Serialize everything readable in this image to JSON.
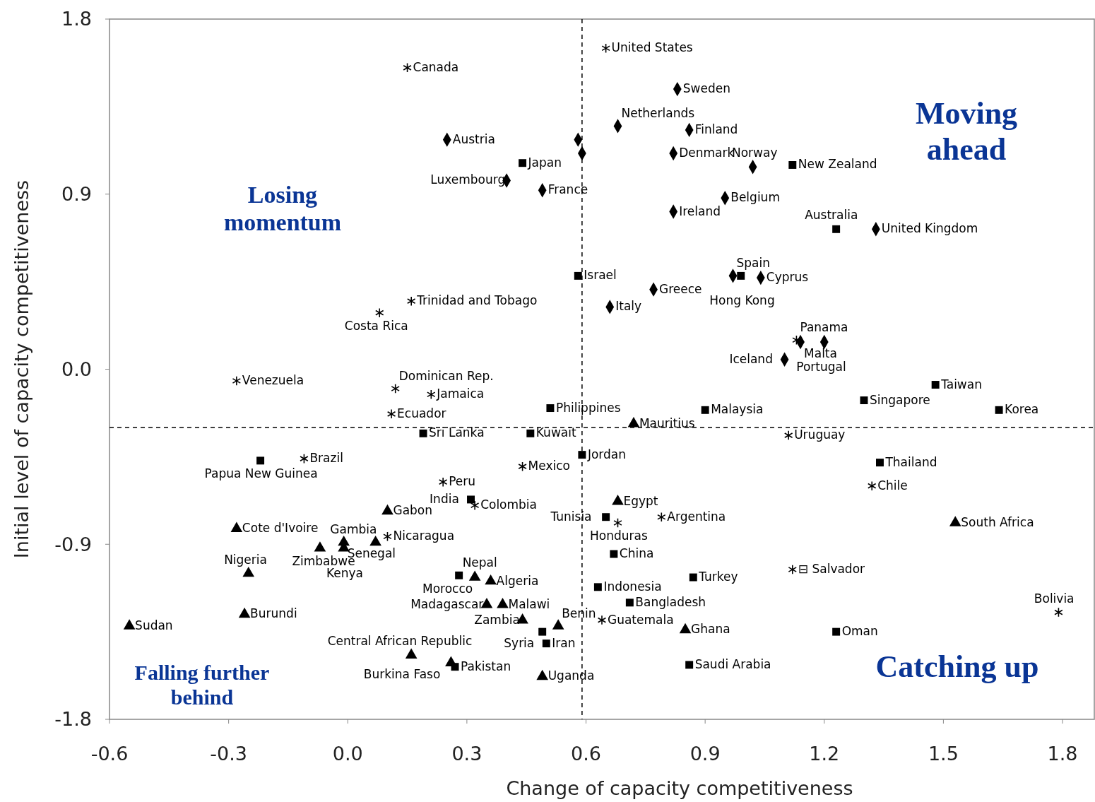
{
  "chart_data": {
    "type": "scatter",
    "xlabel": "Change of capacity competitiveness",
    "ylabel": "Initial level of capacity competitiveness",
    "xlim": [
      -0.6,
      1.88
    ],
    "ylim": [
      -1.8,
      1.8
    ],
    "xticks": [
      -0.6,
      -0.3,
      {
        "value": 0,
        "label": "0.0"
      },
      0.3,
      0.6,
      0.9,
      1.2,
      1.5,
      1.8
    ],
    "yticks": [
      -1.8,
      -0.9,
      {
        "value": 0,
        "label": "0.0"
      },
      0.9,
      1.8
    ],
    "series": [
      {
        "marker": "cross",
        "color": "#000000",
        "x": [
          0.15,
          0.65,
          0.16,
          0.08,
          -0.28,
          0.12,
          0.21,
          0.11,
          1.13,
          1.11,
          -0.11,
          0.24,
          0.44,
          0.32,
          0.1,
          1.32,
          0.68,
          0.79,
          1.12,
          0.64,
          1.79
        ],
        "values": [
          1.55,
          1.65,
          0.35,
          0.29,
          -0.06,
          -0.1,
          -0.13,
          -0.23,
          0.15,
          -0.34,
          -0.46,
          -0.58,
          -0.5,
          -0.7,
          -0.86,
          -0.6,
          -0.79,
          -0.76,
          -1.03,
          -1.29,
          -1.25
        ]
      },
      {
        "marker": "diamond",
        "color": "#000000",
        "x": [
          0.83,
          0.68,
          0.86,
          0.58,
          0.59,
          0.25,
          0.82,
          1.02,
          0.4,
          0.49,
          0.95,
          0.82,
          1.33,
          0.97,
          1.04,
          0.77,
          0.66,
          1.14,
          1.2,
          1.1
        ],
        "values": [
          1.44,
          1.25,
          1.23,
          1.18,
          1.11,
          1.18,
          1.11,
          1.04,
          0.97,
          0.92,
          0.88,
          0.81,
          0.72,
          0.48,
          0.47,
          0.41,
          0.32,
          0.14,
          0.14,
          0.05
        ]
      },
      {
        "marker": "square",
        "color": "#000000",
        "x": [
          0.44,
          1.12,
          1.23,
          0.58,
          0.99,
          1.48,
          1.3,
          0.51,
          0.9,
          1.64,
          0.19,
          0.46,
          0.59,
          -0.22,
          1.34,
          0.31,
          0.65,
          0.67,
          0.28,
          0.87,
          0.63,
          0.71,
          0.49,
          0.5,
          1.23,
          0.27,
          0.86
        ],
        "values": [
          1.06,
          1.05,
          0.72,
          0.48,
          0.48,
          -0.08,
          -0.16,
          -0.2,
          -0.21,
          -0.21,
          -0.33,
          -0.33,
          -0.44,
          -0.47,
          -0.48,
          -0.67,
          -0.76,
          -0.95,
          -1.06,
          -1.07,
          -1.12,
          -1.2,
          -1.35,
          -1.41,
          -1.35,
          -1.53,
          -1.52
        ]
      },
      {
        "marker": "triangle",
        "color": "#000000",
        "x": [
          0.72,
          0.68,
          0.1,
          -0.28,
          -0.07,
          -0.01,
          -0.01,
          0.07,
          -0.25,
          0.32,
          0.36,
          0.35,
          0.39,
          -0.55,
          -0.26,
          0.44,
          0.53,
          0.16,
          0.26,
          0.85,
          1.53,
          0.49
        ],
        "values": [
          -0.28,
          -0.68,
          -0.73,
          -0.82,
          -0.92,
          -0.89,
          -0.92,
          -0.89,
          -1.05,
          -1.07,
          -1.09,
          -1.21,
          -1.21,
          -1.32,
          -1.26,
          -1.29,
          -1.32,
          -1.47,
          -1.51,
          -1.34,
          -0.79,
          -1.58
        ]
      }
    ],
    "ref_lines": [
      {
        "axis": "x",
        "value": 0.59,
        "color": "#000000",
        "line_style": "dashed"
      },
      {
        "axis": "y",
        "value": -0.3,
        "color": "#000000",
        "line_style": "dashed"
      }
    ],
    "annotations": [
      "Losing momentum",
      "Moving ahead",
      "Falling further behind",
      "Catching up",
      {
        "text": "Canada",
        "x": 0.15,
        "y": 1.55
      },
      {
        "text": "United States",
        "x": 0.65,
        "y": 1.65
      },
      {
        "text": "Trinidad and Tobago",
        "x": 0.16,
        "y": 0.35
      },
      {
        "text": "Costa Rica",
        "x": 0.08,
        "y": 0.29
      },
      {
        "text": "Venezuela",
        "x": -0.28,
        "y": -0.06
      },
      {
        "text": "Dominican Rep.",
        "x": 0.12,
        "y": -0.1
      },
      {
        "text": "Jamaica",
        "x": 0.21,
        "y": -0.13
      },
      {
        "text": "Ecuador",
        "x": 0.11,
        "y": -0.23
      },
      {
        "text": "Panama",
        "x": 1.13,
        "y": 0.15
      },
      {
        "text": "Uruguay",
        "x": 1.11,
        "y": -0.34
      },
      {
        "text": "Brazil",
        "x": -0.11,
        "y": -0.46
      },
      {
        "text": "Peru",
        "x": 0.24,
        "y": -0.58
      },
      {
        "text": "Mexico",
        "x": 0.44,
        "y": -0.5
      },
      {
        "text": "Colombia",
        "x": 0.32,
        "y": -0.7
      },
      {
        "text": "Nicaragua",
        "x": 0.1,
        "y": -0.86
      },
      {
        "text": "Chile",
        "x": 1.32,
        "y": -0.6
      },
      {
        "text": "Honduras",
        "x": 0.68,
        "y": -0.79
      },
      {
        "text": "Argentina",
        "x": 0.79,
        "y": -0.76
      },
      {
        "text": "⊟ Salvador",
        "x": 1.12,
        "y": -1.03
      },
      {
        "text": "Guatemala",
        "x": 0.64,
        "y": -1.29
      },
      {
        "text": "Bolivia",
        "x": 1.79,
        "y": -1.25
      },
      {
        "text": "Sweden",
        "x": 0.83,
        "y": 1.44
      },
      {
        "text": "Netherlands",
        "x": 0.68,
        "y": 1.25
      },
      {
        "text": "Finland",
        "x": 0.86,
        "y": 1.23
      },
      {
        "text": "Austria",
        "x": 0.25,
        "y": 1.18
      },
      {
        "text": "Denmark",
        "x": 0.82,
        "y": 1.11
      },
      {
        "text": "Norway",
        "x": 1.02,
        "y": 1.04
      },
      {
        "text": "Luxembourg",
        "x": 0.4,
        "y": 0.97
      },
      {
        "text": "France",
        "x": 0.49,
        "y": 0.92
      },
      {
        "text": "Belgium",
        "x": 0.95,
        "y": 0.88
      },
      {
        "text": "Ireland",
        "x": 0.82,
        "y": 0.81
      },
      {
        "text": "United Kingdom",
        "x": 1.33,
        "y": 0.72
      },
      {
        "text": "Spain",
        "x": 0.97,
        "y": 0.48
      },
      {
        "text": "Cyprus",
        "x": 1.04,
        "y": 0.47
      },
      {
        "text": "Greece",
        "x": 0.77,
        "y": 0.41
      },
      {
        "text": "Italy",
        "x": 0.66,
        "y": 0.32
      },
      {
        "text": "Malta",
        "x": 1.14,
        "y": 0.14
      },
      {
        "text": "Portugal",
        "x": 1.2,
        "y": 0.14
      },
      {
        "text": "Iceland",
        "x": 1.1,
        "y": 0.05
      },
      {
        "text": "Japan",
        "x": 0.44,
        "y": 1.06
      },
      {
        "text": "New Zealand",
        "x": 1.12,
        "y": 1.05
      },
      {
        "text": "Australia",
        "x": 1.23,
        "y": 0.72
      },
      {
        "text": "Israel",
        "x": 0.58,
        "y": 0.48
      },
      {
        "text": "Hong Kong",
        "x": 0.99,
        "y": 0.48
      },
      {
        "text": "Taiwan",
        "x": 1.48,
        "y": -0.08
      },
      {
        "text": "Singapore",
        "x": 1.3,
        "y": -0.16
      },
      {
        "text": "Philippines",
        "x": 0.51,
        "y": -0.2
      },
      {
        "text": "Malaysia",
        "x": 0.9,
        "y": -0.21
      },
      {
        "text": "Korea",
        "x": 1.64,
        "y": -0.21
      },
      {
        "text": "Sri Lanka",
        "x": 0.19,
        "y": -0.33
      },
      {
        "text": "Kuwait",
        "x": 0.46,
        "y": -0.33
      },
      {
        "text": "Jordan",
        "x": 0.59,
        "y": -0.44
      },
      {
        "text": "Papua New Guinea",
        "x": -0.22,
        "y": -0.47
      },
      {
        "text": "Thailand",
        "x": 1.34,
        "y": -0.48
      },
      {
        "text": "India",
        "x": 0.31,
        "y": -0.67
      },
      {
        "text": "Tunisia",
        "x": 0.65,
        "y": -0.76
      },
      {
        "text": "China",
        "x": 0.67,
        "y": -0.95
      },
      {
        "text": "Nepal",
        "x": 0.28,
        "y": -1.06
      },
      {
        "text": "Turkey",
        "x": 0.87,
        "y": -1.07
      },
      {
        "text": "Indonesia",
        "x": 0.63,
        "y": -1.12
      },
      {
        "text": "Bangladesh",
        "x": 0.71,
        "y": -1.2
      },
      {
        "text": "Syria",
        "x": 0.49,
        "y": -1.35
      },
      {
        "text": "Iran",
        "x": 0.5,
        "y": -1.41
      },
      {
        "text": "Oman",
        "x": 1.23,
        "y": -1.35
      },
      {
        "text": "Pakistan",
        "x": 0.27,
        "y": -1.53
      },
      {
        "text": "Saudi Arabia",
        "x": 0.86,
        "y": -1.52
      },
      {
        "text": "Mauritius",
        "x": 0.72,
        "y": -0.28
      },
      {
        "text": "Egypt",
        "x": 0.68,
        "y": -0.68
      },
      {
        "text": "Gabon",
        "x": 0.1,
        "y": -0.73
      },
      {
        "text": "Cote d'Ivoire",
        "x": -0.28,
        "y": -0.82
      },
      {
        "text": "Zimbabwe",
        "x": -0.07,
        "y": -0.92
      },
      {
        "text": "Senegal",
        "x": -0.01,
        "y": -0.89
      },
      {
        "text": "Kenya",
        "x": -0.01,
        "y": -0.92
      },
      {
        "text": "Gambia",
        "x": 0.07,
        "y": -0.89
      },
      {
        "text": "Nigeria",
        "x": -0.25,
        "y": -1.05
      },
      {
        "text": "Morocco",
        "x": 0.32,
        "y": -1.07
      },
      {
        "text": "Algeria",
        "x": 0.36,
        "y": -1.09
      },
      {
        "text": "Madagascar",
        "x": 0.35,
        "y": -1.21
      },
      {
        "text": "Malawi",
        "x": 0.39,
        "y": -1.21
      },
      {
        "text": "Sudan",
        "x": -0.55,
        "y": -1.32
      },
      {
        "text": "Burundi",
        "x": -0.26,
        "y": -1.26
      },
      {
        "text": "Zambia",
        "x": 0.44,
        "y": -1.29
      },
      {
        "text": "Benin",
        "x": 0.53,
        "y": -1.32
      },
      {
        "text": "Central African Republic",
        "x": 0.16,
        "y": -1.47
      },
      {
        "text": "Burkina Faso",
        "x": 0.26,
        "y": -1.51
      },
      {
        "text": "Ghana",
        "x": 0.85,
        "y": -1.34
      },
      {
        "text": "South Africa",
        "x": 1.53,
        "y": -0.79
      },
      {
        "text": "Uganda",
        "x": 0.49,
        "y": -1.58
      }
    ]
  }
}
